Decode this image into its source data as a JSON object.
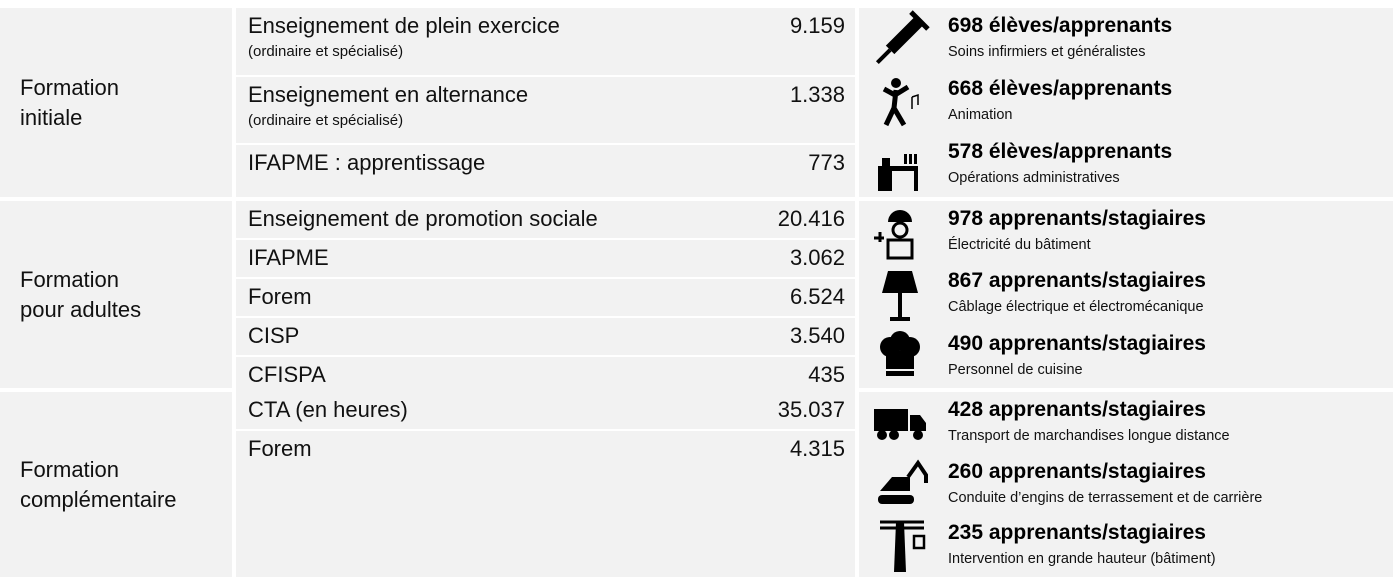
{
  "sections": [
    {
      "label": [
        "Formation",
        "initiale"
      ],
      "rows": [
        {
          "name": "Enseignement de plein exercice",
          "sub": "(ordinaire et spécialisé)",
          "value": "9.159"
        },
        {
          "name": "Enseignement en alternance",
          "sub": "(ordinaire et spécialisé)",
          "value": "1.338"
        },
        {
          "name": "IFAPME : apprentissage",
          "value": "773"
        }
      ],
      "highlights": [
        {
          "title": "698 élèves/apprenants",
          "sub": "Soins infirmiers et généralistes"
        },
        {
          "title": "668 élèves/apprenants",
          "sub": "Animation"
        },
        {
          "title": "578 élèves/apprenants",
          "sub": "Opérations administratives"
        }
      ]
    },
    {
      "label": [
        "Formation",
        "pour adultes"
      ],
      "rows": [
        {
          "name": "Enseignement de promotion sociale",
          "value": "20.416"
        },
        {
          "name": "IFAPME",
          "value": "3.062"
        },
        {
          "name": "Forem",
          "value": "6.524"
        },
        {
          "name": "CISP",
          "value": "3.540"
        },
        {
          "name": "CFISPA",
          "value": "435"
        }
      ],
      "highlights": [
        {
          "title": "978 apprenants/stagiaires",
          "sub": "Électricité du bâtiment"
        },
        {
          "title": "867 apprenants/stagiaires",
          "sub": "Câblage électrique et électromécanique"
        },
        {
          "title": "490 apprenants/stagiaires",
          "sub": "Personnel de cuisine"
        }
      ]
    },
    {
      "label": [
        "Formation",
        "complémentaire"
      ],
      "rows": [
        {
          "name": "CTA (en heures)",
          "value": "35.037"
        },
        {
          "name": "Forem",
          "value": "4.315"
        }
      ],
      "highlights": [
        {
          "title": "428 apprenants/stagiaires",
          "sub": "Transport de marchandises longue distance"
        },
        {
          "title": "260 apprenants/stagiaires",
          "sub": "Conduite d’engins de terrassement et de carrière"
        },
        {
          "title": "235 apprenants/stagiaires",
          "sub": "Intervention en grande hauteur (bâtiment)"
        }
      ]
    }
  ]
}
